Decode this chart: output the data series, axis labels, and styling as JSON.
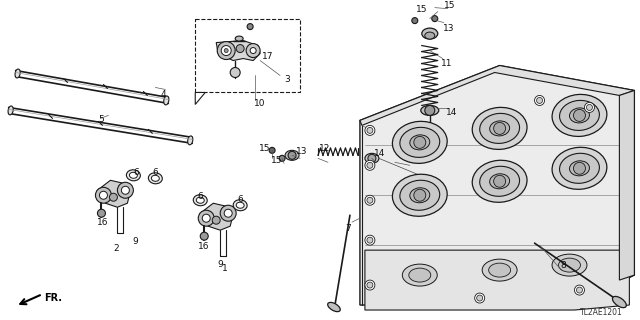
{
  "bg_color": "#ffffff",
  "diagram_code": "TL2AE1201",
  "fr_label": "FR.",
  "line_color": "#1a1a1a",
  "label_fontsize": 6.5,
  "label_color": "#111111",
  "figsize": [
    6.4,
    3.2
  ],
  "dpi": 100
}
